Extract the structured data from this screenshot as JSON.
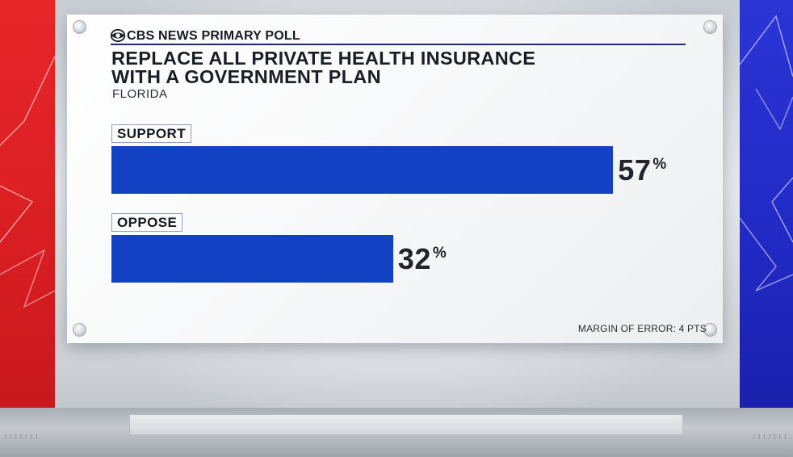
{
  "brand": {
    "logo_icon": "cbs-eye-icon",
    "header": "CBS NEWS PRIMARY POLL"
  },
  "chart_data": {
    "type": "bar",
    "orientation": "horizontal",
    "title": "REPLACE ALL PRIVATE HEALTH INSURANCE\nWITH A GOVERNMENT PLAN",
    "subtitle": "FLORIDA",
    "categories": [
      "SUPPORT",
      "OPPOSE"
    ],
    "values": [
      57,
      32
    ],
    "value_suffix": "%",
    "xlim": [
      0,
      100
    ],
    "bar_color": "#1241c4",
    "grid": false,
    "legend": false
  },
  "footnote": "MARGIN OF ERROR: 4 PTS",
  "colors": {
    "left_wall": "#e0262a",
    "right_wall": "#2530d0",
    "title_text": "#1b1e24"
  }
}
